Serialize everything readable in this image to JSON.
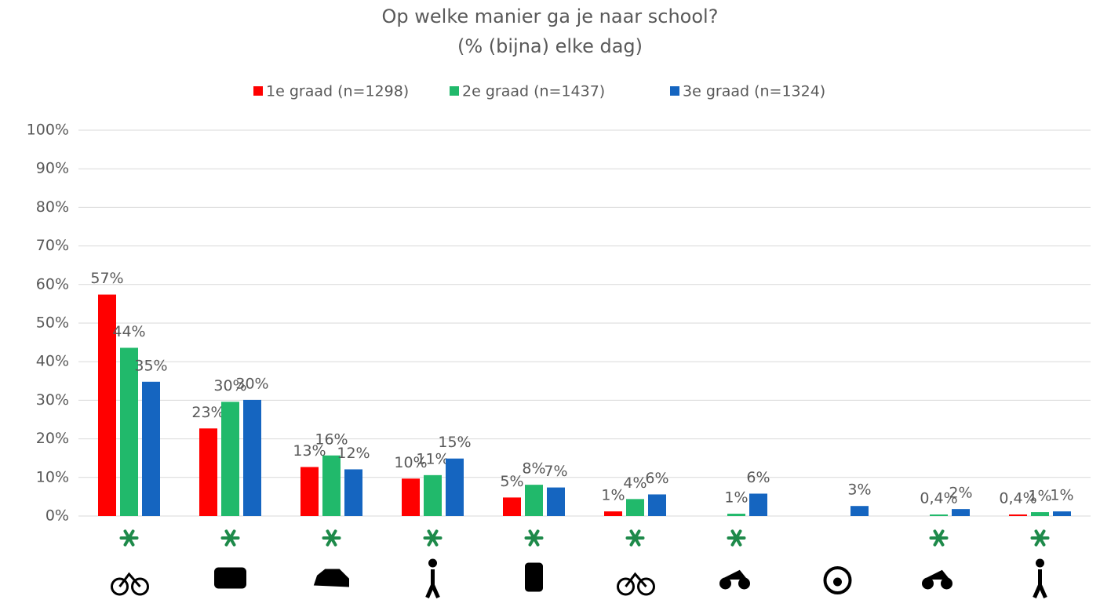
{
  "chart_data": {
    "type": "bar",
    "title": "Op welke manier ga je naar school?",
    "subtitle": "(% (bijna) elke dag)",
    "categories": [
      null,
      null,
      null,
      null,
      null,
      null,
      null,
      null,
      null,
      null
    ],
    "series": [
      {
        "name": "1e graad (n=1298)",
        "color": "#ff0000",
        "values": [
          57.4,
          22.7,
          12.7,
          9.7,
          4.8,
          1.2,
          null,
          null,
          null,
          0.4
        ],
        "value_labels": [
          "57%",
          "23%",
          "13%",
          "10%",
          "5%",
          "1%",
          null,
          null,
          null,
          "0,4%"
        ]
      },
      {
        "name": "2e graad (n=1437)",
        "color": "#21b96b",
        "values": [
          43.6,
          29.6,
          15.7,
          10.6,
          8.1,
          4.4,
          0.6,
          null,
          0.4,
          1.0
        ],
        "value_labels": [
          "44%",
          "30%",
          "16%",
          "11%",
          "8%",
          "4%",
          "1%",
          null,
          "0,4%",
          "1%"
        ]
      },
      {
        "name": "3e graad (n=1324)",
        "color": "#1565c0",
        "values": [
          34.8,
          30.1,
          12.1,
          14.9,
          7.4,
          5.6,
          5.8,
          2.6,
          1.8,
          1.2
        ],
        "value_labels": [
          "35%",
          "30%",
          "12%",
          "15%",
          "7%",
          "6%",
          "6%",
          "3%",
          "2%",
          "1%"
        ]
      }
    ],
    "ylim": [
      0,
      100
    ],
    "yticks": [
      {
        "value": 0,
        "label": "0%"
      },
      {
        "value": 10,
        "label": "10%"
      },
      {
        "value": 20,
        "label": "20%"
      },
      {
        "value": 30,
        "label": "30%"
      },
      {
        "value": 40,
        "label": "40%"
      },
      {
        "value": 50,
        "label": "50%"
      },
      {
        "value": 60,
        "label": "60%"
      },
      {
        "value": 70,
        "label": "70%"
      },
      {
        "value": 80,
        "label": "80%"
      },
      {
        "value": 90,
        "label": "90%"
      },
      {
        "value": 100,
        "label": "100%"
      }
    ],
    "grid": true,
    "legend": "top"
  }
}
